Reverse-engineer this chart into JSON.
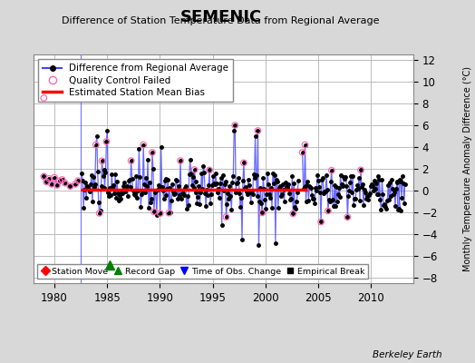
{
  "title": "SEMENIC",
  "subtitle": "Difference of Station Temperature Data from Regional Average",
  "ylabel_right": "Monthly Temperature Anomaly Difference (°C)",
  "xlim": [
    1978.0,
    2014.0
  ],
  "ylim": [
    -8.5,
    12.5
  ],
  "yticks": [
    -8,
    -6,
    -4,
    -2,
    0,
    2,
    4,
    6,
    8,
    10,
    12
  ],
  "xticks": [
    1980,
    1985,
    1990,
    1995,
    2000,
    2005,
    2010
  ],
  "background_color": "#d8d8d8",
  "plot_bg_color": "#ffffff",
  "grid_color": "#bbbbbb",
  "bias_level": 0.1,
  "bias_x_start": 1982.5,
  "bias_x_end": 2004.0,
  "vertical_line_x": 1982.5,
  "record_gap_x": 1985.2,
  "record_gap_y": -6.8,
  "berkeley_earth_text": "Berkeley Earth",
  "line_color": "#4444ff",
  "dot_color": "#000000",
  "qc_color": "#ff69b4",
  "bias_color": "#ff0000"
}
